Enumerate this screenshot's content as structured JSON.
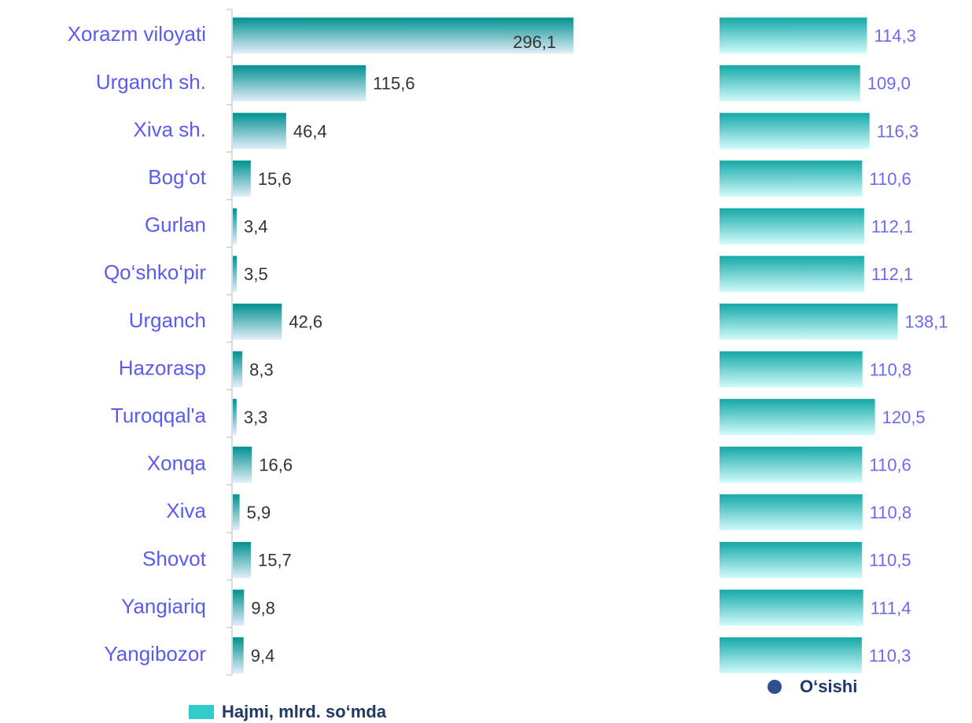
{
  "chart_data": [
    {
      "type": "hbar",
      "categories": [
        "Xorazm viloyati",
        "Urganch sh.",
        "Xiva sh.",
        "Bog‘ot",
        "Gurlan",
        "Qo‘shko‘pir",
        "Urganch ",
        "Hazorasp",
        "Turoqqal'a",
        "Xonqa ",
        "Xiva ",
        "Shovot",
        "Yangiariq",
        "Yangibozor"
      ],
      "series": [
        {
          "name": "Hajmi, mlrd. so‘mda",
          "color": "#33cccc",
          "bar_color": "#009191",
          "values": [
            296.1,
            115.6,
            46.4,
            15.6,
            3.4,
            3.5,
            42.6,
            8.3,
            3.3,
            16.6,
            5.9,
            15.7,
            9.8,
            9.4
          ],
          "value_labels": [
            "296,1",
            "115,6",
            "46,4",
            "15,6",
            "3,4",
            "3,5",
            "42,6",
            "8,3",
            "3,3",
            "16,6",
            "5,9",
            "15,7",
            "9,8",
            "9,4"
          ]
        }
      ],
      "xlim": [
        0,
        300
      ]
    },
    {
      "type": "hbar",
      "series": [
        {
          "name": "O‘sishi",
          "color": "#2f4f8f",
          "bar_color": "#14a8a8",
          "values": [
            114.3,
            109.0,
            116.3,
            110.6,
            112.1,
            112.1,
            138.1,
            110.8,
            120.5,
            110.6,
            110.8,
            110.5,
            111.4,
            110.3
          ],
          "value_labels": [
            "114,3",
            "109,0",
            "116,3",
            "110,6",
            "112,1",
            "112,1",
            "138,1",
            "110,8",
            "120,5",
            "110,6",
            "110,8",
            "110,5",
            "111,4",
            "110,3"
          ]
        }
      ],
      "xlim": [
        0,
        150
      ]
    }
  ]
}
